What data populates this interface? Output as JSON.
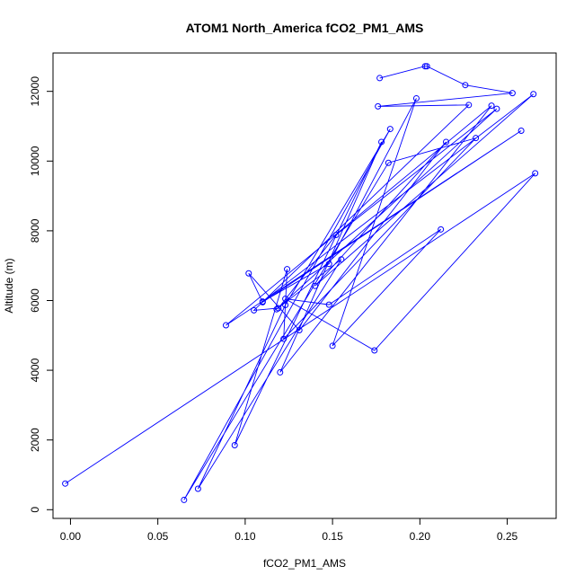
{
  "chart_data": {
    "type": "line",
    "title": "ATOM1 North_America fCO2_PM1_AMS",
    "xlabel": "fCO2_PM1_AMS",
    "ylabel": "Altitude (m)",
    "xlim": [
      -0.01,
      0.278
    ],
    "ylim": [
      -250,
      13100
    ],
    "x_ticks": [
      0.0,
      0.05,
      0.1,
      0.15,
      0.2,
      0.25
    ],
    "x_tick_labels": [
      "0.00",
      "0.05",
      "0.10",
      "0.15",
      "0.20",
      "0.25"
    ],
    "y_ticks": [
      0,
      2000,
      4000,
      6000,
      8000,
      10000,
      12000
    ],
    "y_tick_labels": [
      "0",
      "2000",
      "4000",
      "6000",
      "8000",
      "10000",
      "12000"
    ],
    "grid": false,
    "series": [
      {
        "color": "#0000ff",
        "marker": "open-circle",
        "x": [
          -0.003,
          0.266,
          0.174,
          0.123,
          0.148,
          0.212,
          0.15,
          0.198,
          0.148,
          0.11,
          0.265,
          0.14,
          0.215,
          0.131,
          0.102,
          0.11,
          0.258,
          0.089,
          0.241,
          0.12,
          0.178,
          0.094,
          0.124,
          0.122,
          0.232,
          0.182,
          0.065,
          0.183,
          0.123,
          0.073,
          0.155,
          0.118,
          0.244,
          0.152,
          0.119,
          0.105,
          0.228,
          0.176,
          0.253,
          0.226,
          0.204,
          0.203,
          0.177
        ],
        "y": [
          750,
          9650,
          4570,
          6050,
          5880,
          8040,
          4700,
          11800,
          7050,
          5970,
          11920,
          6420,
          10550,
          5150,
          6780,
          5950,
          10870,
          5290,
          11590,
          3940,
          10550,
          1850,
          6900,
          4900,
          10660,
          9950,
          280,
          10920,
          5870,
          600,
          7180,
          5750,
          11500,
          7880,
          5780,
          5720,
          11610,
          11570,
          11950,
          12180,
          12720,
          12720,
          12380
        ]
      }
    ]
  }
}
